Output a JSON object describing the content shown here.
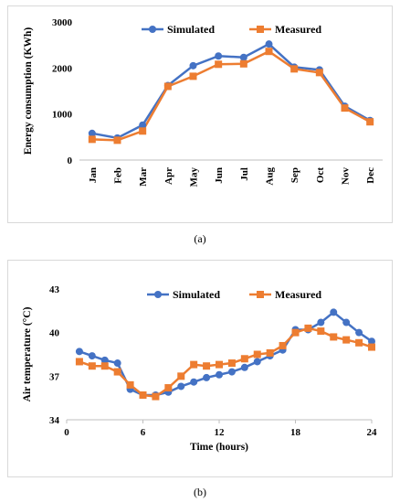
{
  "chart_data": [
    {
      "id": "a",
      "type": "line",
      "caption": "(a)",
      "xlabel": "",
      "ylabel": "Energy consumption (KWh)",
      "categories": [
        "Jan",
        "Feb",
        "Mar",
        "Apr",
        "May",
        "Jun",
        "Jul",
        "Aug",
        "Sep",
        "Oct",
        "Nov",
        "Dec"
      ],
      "ylim": [
        0,
        3000
      ],
      "yticks": [
        "0",
        "1000",
        "2000",
        "3000"
      ],
      "legend_position": "top",
      "grid": false,
      "series": [
        {
          "name": "Simulated",
          "color": "#4472c4",
          "marker": "circle",
          "values": [
            580,
            480,
            760,
            1620,
            2050,
            2260,
            2230,
            2520,
            2020,
            1960,
            1170,
            860
          ]
        },
        {
          "name": "Measured",
          "color": "#ed7d31",
          "marker": "square",
          "values": [
            450,
            430,
            630,
            1600,
            1820,
            2080,
            2090,
            2360,
            1980,
            1900,
            1130,
            830
          ]
        }
      ]
    },
    {
      "id": "b",
      "type": "line",
      "caption": "(b)",
      "xlabel": "Time (hours)",
      "ylabel": "Air temperature (°C)",
      "xlim": [
        0,
        24
      ],
      "xticks": [
        "0",
        "6",
        "12",
        "18",
        "24"
      ],
      "ylim": [
        34,
        43
      ],
      "yticks": [
        "34",
        "37",
        "40",
        "43"
      ],
      "legend_position": "top",
      "grid": false,
      "x": [
        1,
        2,
        3,
        4,
        5,
        6,
        7,
        8,
        9,
        10,
        11,
        12,
        13,
        14,
        15,
        16,
        17,
        18,
        19,
        20,
        21,
        22,
        23,
        24
      ],
      "series": [
        {
          "name": "Simulated",
          "color": "#4472c4",
          "marker": "circle",
          "values": [
            38.7,
            38.4,
            38.1,
            37.9,
            36.1,
            35.7,
            35.7,
            35.9,
            36.3,
            36.6,
            36.9,
            37.1,
            37.3,
            37.6,
            38.0,
            38.4,
            38.8,
            40.2,
            40.2,
            40.7,
            41.4,
            40.7,
            40.0,
            39.4
          ]
        },
        {
          "name": "Measured",
          "color": "#ed7d31",
          "marker": "square",
          "values": [
            38.0,
            37.7,
            37.7,
            37.3,
            36.4,
            35.7,
            35.6,
            36.2,
            37.0,
            37.8,
            37.7,
            37.8,
            37.9,
            38.2,
            38.5,
            38.6,
            39.1,
            40.0,
            40.3,
            40.1,
            39.7,
            39.5,
            39.3,
            39.0
          ]
        }
      ]
    }
  ]
}
